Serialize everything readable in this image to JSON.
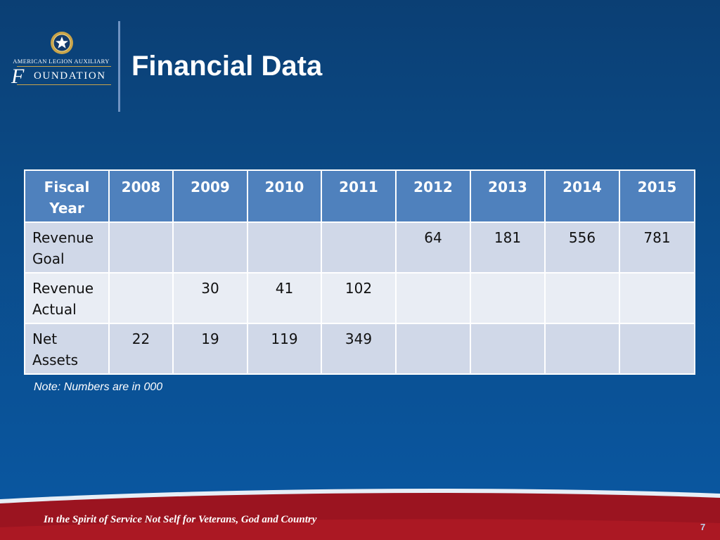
{
  "logo": {
    "line1": "AMERICAN LEGION AUXILIARY",
    "initial": "F",
    "rest": "OUNDATION"
  },
  "title": "Financial Data",
  "table": {
    "header": [
      "Fiscal Year",
      "2008",
      "2009",
      "2010",
      "2011",
      "2012",
      "2013",
      "2014",
      "2015"
    ],
    "rows": [
      {
        "label": "Revenue Goal",
        "values": [
          "",
          "",
          "",
          "",
          "64",
          "181",
          "556",
          "781"
        ]
      },
      {
        "label": "Revenue Actual",
        "values": [
          "",
          "30",
          "41",
          "102",
          "",
          "",
          "",
          ""
        ]
      },
      {
        "label": "Net Assets",
        "values": [
          "22",
          "19",
          "119",
          "349",
          "",
          "",
          "",
          ""
        ]
      }
    ]
  },
  "note": "Note: Numbers are in 000",
  "footer": {
    "tagline": "In the Spirit of Service Not Self for Veterans, God and Country",
    "page_number": "7"
  },
  "colors": {
    "header_fill": "#4f81bd",
    "row_band_dark": "#d0d8e8",
    "row_band_light": "#e9edf4",
    "footer_red": "#9b1420"
  }
}
